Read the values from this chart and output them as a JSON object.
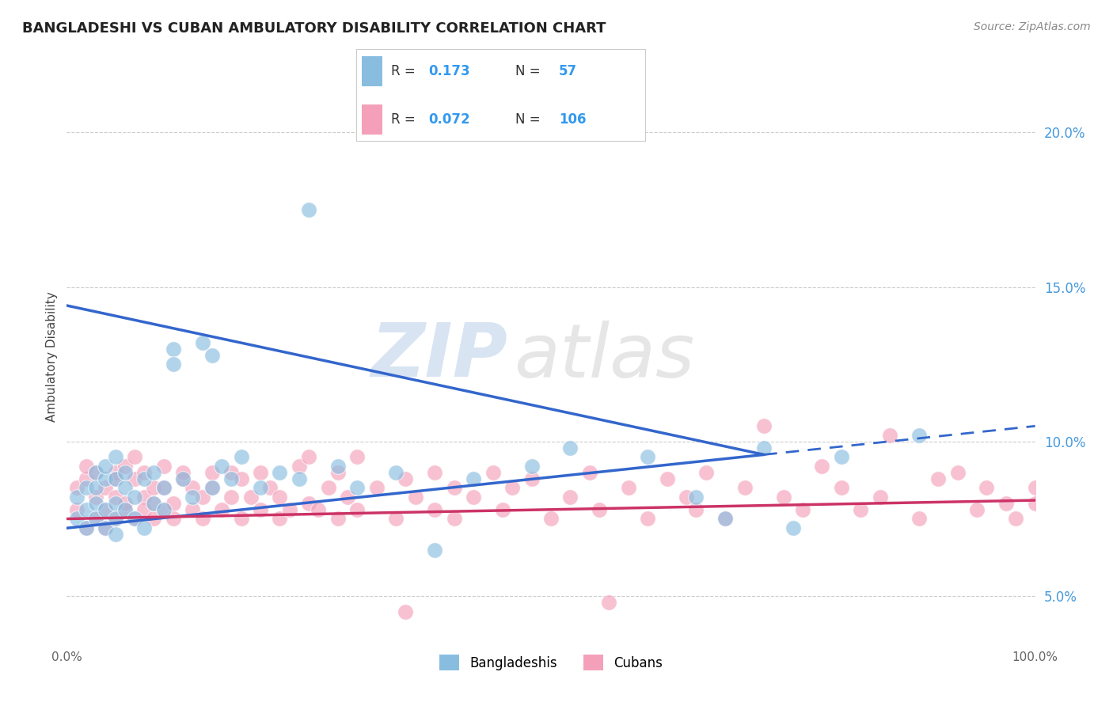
{
  "title": "BANGLADESHI VS CUBAN AMBULATORY DISABILITY CORRELATION CHART",
  "source": "Source: ZipAtlas.com",
  "ylabel": "Ambulatory Disability",
  "xlim": [
    0,
    100
  ],
  "ylim": [
    3.5,
    22
  ],
  "y_ticks_right": [
    5,
    10,
    15,
    20
  ],
  "y_tick_labels_right": [
    "5.0%",
    "10.0%",
    "15.0%",
    "20.0%"
  ],
  "color_blue": "#89bde0",
  "color_pink": "#f4a0bb",
  "color_line_blue": "#3366cc",
  "color_line_pink": "#cc3366",
  "background_color": "#ffffff",
  "bang_solid_end": 72,
  "bang_line_x0": 0,
  "bang_line_y0": 7.2,
  "bang_line_x1": 100,
  "bang_line_y1": 10.5,
  "cuba_line_x0": 0,
  "cuba_line_y0": 7.5,
  "cuba_line_x1": 100,
  "cuba_line_y1": 8.1
}
